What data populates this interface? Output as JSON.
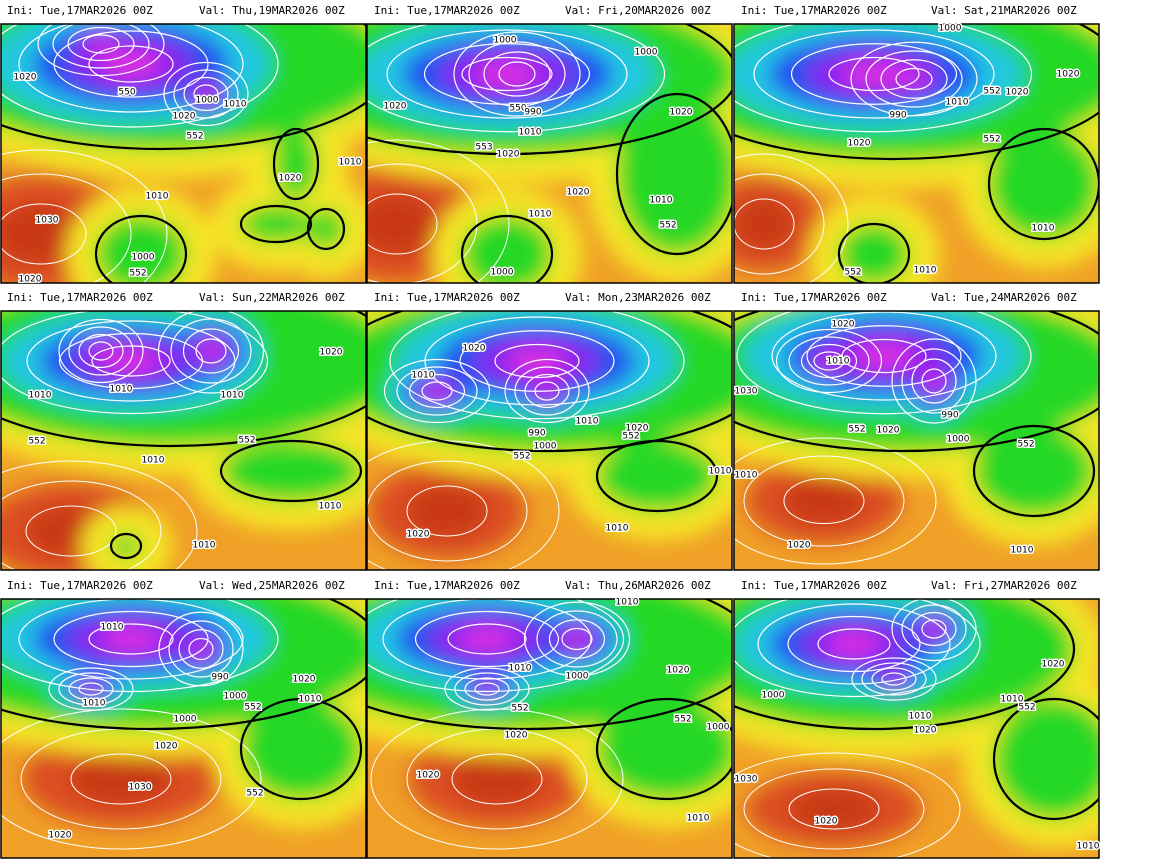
{
  "panels": [
    {
      "init": "Ini: Tue,17MAR2026 00Z",
      "valid": "Val: Thu,19MAR2026 00Z",
      "contour_labels": [
        "1020",
        "550",
        "1000",
        "1010",
        "1020",
        "552",
        "1010",
        "1020",
        "1010",
        "1030",
        "1000",
        "552",
        "1020"
      ]
    },
    {
      "init": "Ini: Tue,17MAR2026 00Z",
      "valid": "Val: Fri,20MAR2026 00Z",
      "contour_labels": [
        "1000",
        "1000",
        "1020",
        "550",
        "990",
        "1010",
        "553",
        "1020",
        "1020",
        "1020",
        "1010",
        "1010",
        "552",
        "1000"
      ]
    },
    {
      "init": "Ini: Tue,17MAR2026 00Z",
      "valid": "Val: Sat,21MAR2026 00Z",
      "contour_labels": [
        "1000",
        "1020",
        "1020",
        "552",
        "1010",
        "990",
        "1020",
        "552",
        "1010",
        "552",
        "1010"
      ]
    },
    {
      "init": "Ini: Tue,17MAR2026 00Z",
      "valid": "Val: Sun,22MAR2026 00Z",
      "contour_labels": [
        "1010",
        "1010",
        "1010",
        "1020",
        "552",
        "552",
        "1010",
        "1010",
        "1010"
      ]
    },
    {
      "init": "Ini: Tue,17MAR2026 00Z",
      "valid": "Val: Mon,23MAR2026 00Z",
      "contour_labels": [
        "1020",
        "1010",
        "1010",
        "990",
        "1000",
        "552",
        "1020",
        "552",
        "1010",
        "1010",
        "1020"
      ]
    },
    {
      "init": "Ini: Tue,17MAR2026 00Z",
      "valid": "Val: Tue,24MAR2026 00Z",
      "contour_labels": [
        "1020",
        "1010",
        "1030",
        "990",
        "1000",
        "552",
        "1020",
        "552",
        "1010",
        "1020",
        "1010"
      ]
    },
    {
      "init": "Ini: Tue,17MAR2026 00Z",
      "valid": "Val: Wed,25MAR2026 00Z",
      "contour_labels": [
        "1010",
        "990",
        "1000",
        "552",
        "1020",
        "1010",
        "1010",
        "1000",
        "1020",
        "552",
        "1030",
        "1020"
      ]
    },
    {
      "init": "Ini: Tue,17MAR2026 00Z",
      "valid": "Val: Thu,26MAR2026 00Z",
      "contour_labels": [
        "1010",
        "1010",
        "1000",
        "552",
        "1020",
        "552",
        "1000",
        "1020",
        "1020",
        "1010"
      ]
    },
    {
      "init": "Ini: Tue,17MAR2026 00Z",
      "valid": "Val: Fri,27MAR2026 00Z",
      "contour_labels": [
        "1000",
        "1010",
        "1020",
        "1010",
        "552",
        "1020",
        "1030",
        "1020",
        "1010"
      ]
    }
  ]
}
